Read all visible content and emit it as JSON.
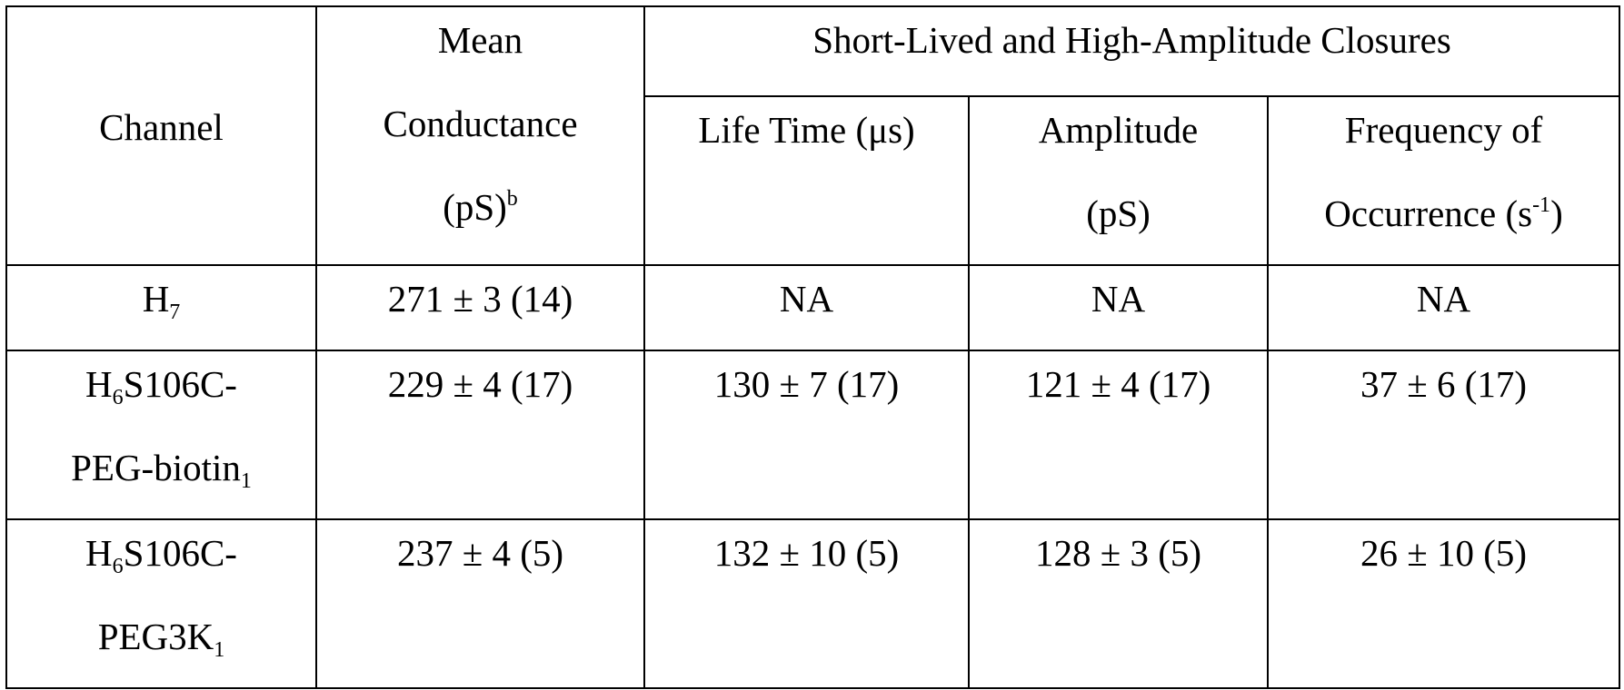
{
  "table": {
    "header": {
      "channel": [
        [
          "Channel"
        ]
      ],
      "mean_conductance": [
        [
          "Mean"
        ],
        [
          "Conductance"
        ],
        [
          "(pS)",
          {
            "sup": "b"
          }
        ]
      ],
      "group": [
        [
          "Short-Lived and High-Amplitude Closures"
        ]
      ],
      "columns": [
        [
          [
            "Life Time (μs)"
          ]
        ],
        [
          [
            "Amplitude"
          ],
          [
            "(pS)"
          ]
        ],
        [
          [
            "Frequency of"
          ],
          [
            "Occurrence (s",
            {
              "sup": "-1"
            },
            ")"
          ]
        ]
      ]
    },
    "rows": [
      [
        [
          [
            "H",
            {
              "sub": "7"
            }
          ]
        ],
        [
          [
            "271 ± 3 (14)"
          ]
        ],
        [
          [
            "NA"
          ]
        ],
        [
          [
            "NA"
          ]
        ],
        [
          [
            "NA"
          ]
        ]
      ],
      [
        [
          [
            "H",
            {
              "sub": "6"
            },
            "S106C-"
          ],
          [
            "PEG-biotin",
            {
              "sub": "1"
            }
          ]
        ],
        [
          [
            "229 ± 4 (17)"
          ]
        ],
        [
          [
            "130 ± 7 (17)"
          ]
        ],
        [
          [
            "121 ± 4 (17)"
          ]
        ],
        [
          [
            "37 ± 6 (17)"
          ]
        ]
      ],
      [
        [
          [
            "H",
            {
              "sub": "6"
            },
            "S106C-"
          ],
          [
            "PEG3K",
            {
              "sub": "1"
            }
          ]
        ],
        [
          [
            "237 ± 4 (5)"
          ]
        ],
        [
          [
            "132 ± 10 (5)"
          ]
        ],
        [
          [
            "128 ± 3 (5)"
          ]
        ],
        [
          [
            "26 ± 10 (5)"
          ]
        ]
      ]
    ]
  }
}
